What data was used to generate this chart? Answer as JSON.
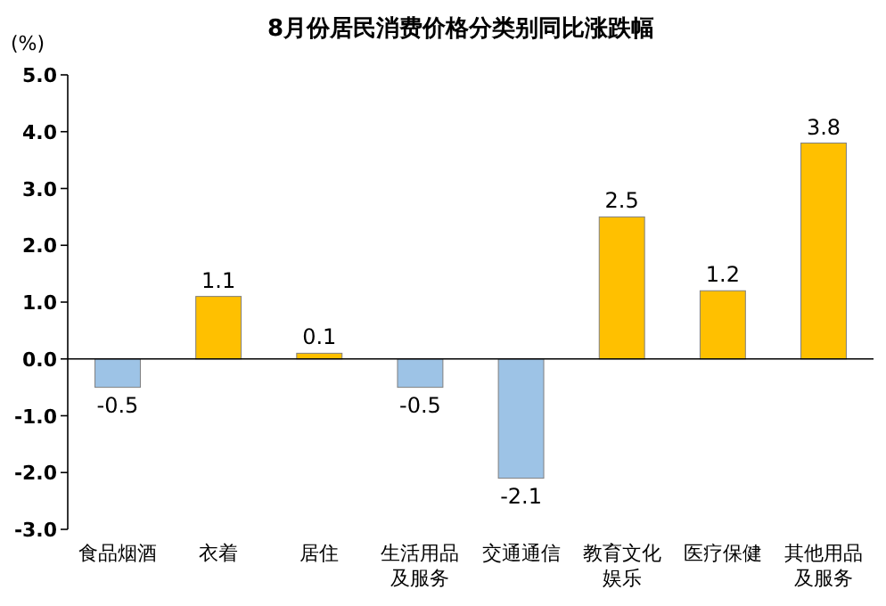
{
  "chart_data": {
    "type": "bar",
    "title": "8月份居民消费价格分类别同比涨跌幅",
    "ylabel": "(%)",
    "categories": [
      "食品烟酒",
      "衣着",
      "居住",
      "生活用品及服务",
      "交通通信",
      "教育文化娱乐",
      "医疗保健",
      "其他用品及服务"
    ],
    "values": [
      -0.5,
      1.1,
      0.1,
      -0.5,
      -2.1,
      2.5,
      1.2,
      3.8
    ],
    "colors": [
      "#9dc3e6",
      "#ffc000",
      "#ffc000",
      "#9dc3e6",
      "#9dc3e6",
      "#ffc000",
      "#ffc000",
      "#ffc000"
    ],
    "ylim": [
      -3,
      5
    ],
    "yticks": [
      {
        "value": -3,
        "label": "-3.0"
      },
      {
        "value": -2,
        "label": "-2.0"
      },
      {
        "value": -1,
        "label": "-1.0"
      },
      {
        "value": 0,
        "label": "0.0"
      },
      {
        "value": 1,
        "label": "1.0"
      },
      {
        "value": 2,
        "label": "2.0"
      },
      {
        "value": 3,
        "label": "3.0"
      },
      {
        "value": 4,
        "label": "4.0"
      },
      {
        "value": 5,
        "label": "5.0"
      }
    ],
    "data_labels": true
  }
}
